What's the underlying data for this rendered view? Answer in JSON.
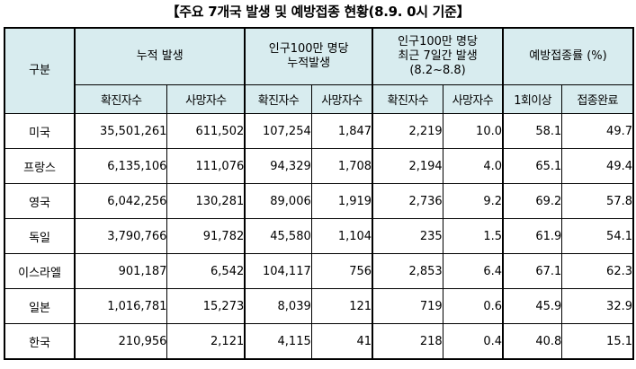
{
  "title": "【주요 7개국 발생 및 예방접종 현황(8.9. 0시 기준】",
  "header": {
    "category": "구분",
    "groups": [
      {
        "label_lines": [
          "누적 발생"
        ]
      },
      {
        "label_lines": [
          "인구100만 명당",
          "누적발생"
        ]
      },
      {
        "label_lines": [
          "인구100만 명당",
          "최근 7일간 발생",
          "(8.2~8.8)"
        ]
      },
      {
        "label_lines": [
          "예방접종률 (%)"
        ]
      }
    ],
    "sub": [
      "확진자수",
      "사망자수",
      "확진자수",
      "사망자수",
      "확진자수",
      "사망자수",
      "1회이상",
      "접종완료"
    ]
  },
  "rows": [
    {
      "name": "미국",
      "values": [
        "35,501,261",
        "611,502",
        "107,254",
        "1,847",
        "2,219",
        "10.0",
        "58.1",
        "49.7"
      ]
    },
    {
      "name": "프랑스",
      "values": [
        "6,135,106",
        "111,076",
        "94,329",
        "1,708",
        "2,194",
        "4.0",
        "65.1",
        "49.4"
      ]
    },
    {
      "name": "영국",
      "values": [
        "6,042,256",
        "130,281",
        "89,006",
        "1,919",
        "2,736",
        "9.2",
        "69.2",
        "57.8"
      ]
    },
    {
      "name": "독일",
      "values": [
        "3,790,766",
        "91,782",
        "45,580",
        "1,104",
        "235",
        "1.5",
        "61.9",
        "54.1"
      ]
    },
    {
      "name": "이스라엘",
      "values": [
        "901,187",
        "6,542",
        "104,117",
        "756",
        "2,853",
        "6.4",
        "67.1",
        "62.3"
      ]
    },
    {
      "name": "일본",
      "values": [
        "1,016,781",
        "15,273",
        "8,039",
        "121",
        "719",
        "0.6",
        "45.9",
        "32.9"
      ]
    },
    {
      "name": "한국",
      "values": [
        "210,956",
        "2,121",
        "4,115",
        "41",
        "218",
        "0.4",
        "40.8",
        "15.1"
      ]
    }
  ],
  "colors": {
    "header_bg": "#d8ecef"
  }
}
